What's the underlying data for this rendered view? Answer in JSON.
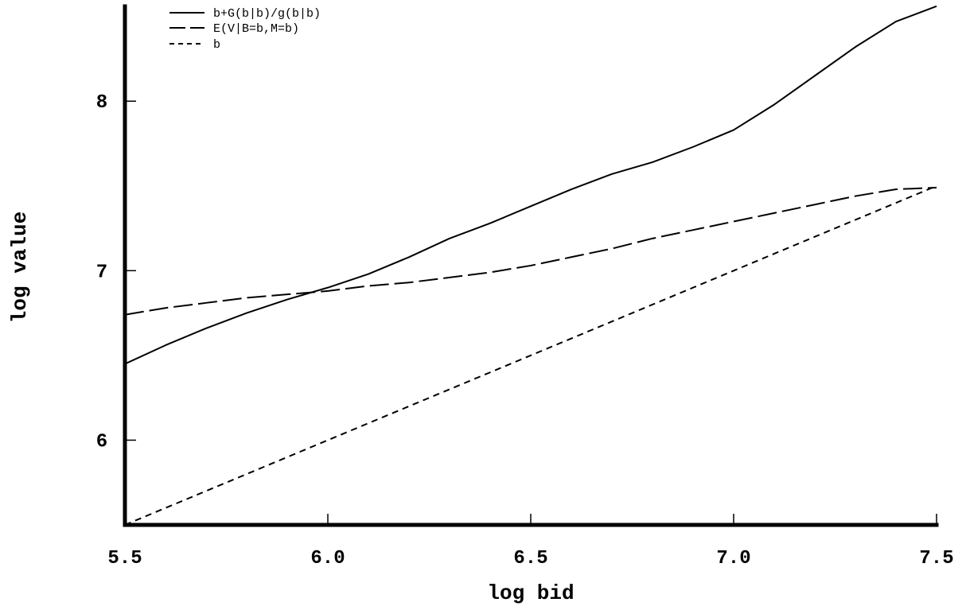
{
  "chart_data": {
    "type": "line",
    "title": "",
    "xlabel": "log bid",
    "ylabel": "log value",
    "xlim": [
      5.5,
      7.5
    ],
    "ylim": [
      5.5,
      8.55
    ],
    "x_ticks": [
      5.5,
      6.0,
      6.5,
      7.0,
      7.5
    ],
    "x_tick_labels": [
      "5.5",
      "6.0",
      "6.5",
      "7.0",
      "7.5"
    ],
    "y_ticks": [
      6,
      7,
      8
    ],
    "y_tick_labels": [
      "6",
      "7",
      "8"
    ],
    "grid": false,
    "legend_position": "top-left",
    "series": [
      {
        "name": "b+G(b|b)/g(b|b)",
        "style": "solid",
        "x": [
          5.5,
          5.6,
          5.7,
          5.8,
          5.9,
          6.0,
          6.1,
          6.2,
          6.3,
          6.4,
          6.5,
          6.6,
          6.7,
          6.8,
          6.9,
          7.0,
          7.1,
          7.2,
          7.3,
          7.4,
          7.5
        ],
        "y": [
          6.45,
          6.56,
          6.66,
          6.75,
          6.83,
          6.9,
          6.98,
          7.08,
          7.19,
          7.28,
          7.38,
          7.48,
          7.57,
          7.64,
          7.73,
          7.83,
          7.98,
          8.15,
          8.32,
          8.47,
          8.56
        ]
      },
      {
        "name": "E(V|B=b,M=b)",
        "style": "dashed",
        "x": [
          5.5,
          5.6,
          5.7,
          5.8,
          5.9,
          6.0,
          6.1,
          6.2,
          6.3,
          6.4,
          6.5,
          6.6,
          6.7,
          6.8,
          6.9,
          7.0,
          7.1,
          7.2,
          7.3,
          7.4,
          7.5
        ],
        "y": [
          6.74,
          6.78,
          6.81,
          6.84,
          6.86,
          6.88,
          6.91,
          6.93,
          6.96,
          6.99,
          7.03,
          7.08,
          7.13,
          7.19,
          7.24,
          7.29,
          7.34,
          7.39,
          7.44,
          7.48,
          7.49
        ]
      },
      {
        "name": "b",
        "style": "dotted",
        "x": [
          5.5,
          7.5
        ],
        "y": [
          5.5,
          7.5
        ]
      }
    ]
  }
}
